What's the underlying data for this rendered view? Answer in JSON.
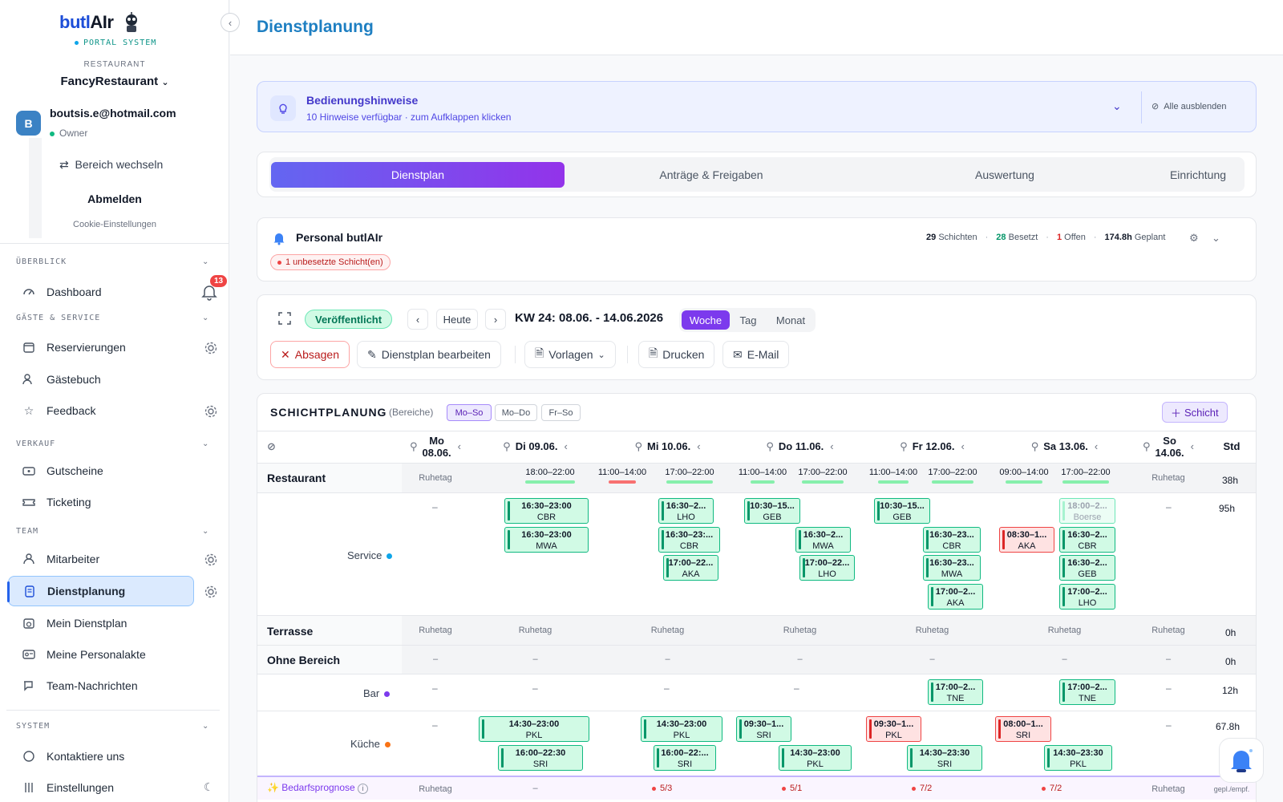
{
  "sidebar": {
    "brand_main": "butl",
    "brand_ai": "AIr",
    "portal_label": "PORTAL SYSTEM",
    "restaurant_label": "RESTAURANT",
    "restaurant_name": "FancyRestaurant",
    "avatar_letter": "B",
    "user_email": "boutsis.e@hotmail.com",
    "user_role": "Owner",
    "switch_area": "Bereich wechseln",
    "logout": "Abmelden",
    "cookie": "Cookie-Einstellungen",
    "notification_count": "13",
    "sections": {
      "overview": "ÜBERBLICK",
      "guests": "GÄSTE & SERVICE",
      "sales": "VERKAUF",
      "team": "TEAM",
      "system": "SYSTEM"
    },
    "items": {
      "dashboard": "Dashboard",
      "reservations": "Reservierungen",
      "guestbook": "Gästebuch",
      "feedback": "Feedback",
      "vouchers": "Gutscheine",
      "ticketing": "Ticketing",
      "staff": "Mitarbeiter",
      "scheduling": "Dienstplanung",
      "my_schedule": "Mein Dienstplan",
      "my_file": "Meine Personalakte",
      "team_messages": "Team-Nachrichten",
      "contact": "Kontaktiere uns",
      "settings": "Einstellungen"
    }
  },
  "header": {
    "title": "Dienstplanung"
  },
  "hints": {
    "title": "Bedienungshinweise",
    "subtitle": "10 Hinweise verfügbar · zum Aufklappen klicken",
    "hide_all": "Alle ausblenden"
  },
  "tabs": [
    "Dienstplan",
    "Anträge & Freigaben",
    "Auswertung",
    "Einrichtung"
  ],
  "staff_summary": {
    "title": "Personal butlAIr",
    "unfilled": "1 unbesetzte Schicht(en)",
    "shifts_n": "29",
    "shifts_l": "Schichten",
    "filled_n": "28",
    "filled_l": "Besetzt",
    "open_n": "1",
    "open_l": "Offen",
    "planned_n": "174.8h",
    "planned_l": "Geplant",
    "sep": "·"
  },
  "toolbar": {
    "status": "Veröffentlicht",
    "today": "Heute",
    "week_label": "KW 24: 08.06. - 14.06.2026",
    "views": [
      "Woche",
      "Tag",
      "Monat"
    ],
    "cancel": "Absagen",
    "edit": "Dienstplan bearbeiten",
    "templates": "Vorlagen",
    "print": "Drucken",
    "email": "E-Mail"
  },
  "planner": {
    "title": "SCHICHTPLANUNG",
    "subtitle": "(Bereiche)",
    "ranges": [
      "Mo–So",
      "Mo–Do",
      "Fr–So"
    ],
    "add_shift": "Schicht",
    "std_header": "Std",
    "days": [
      {
        "line1": "Mo",
        "line2": "08.06."
      },
      {
        "line1": "Di 09.06.",
        "line2": ""
      },
      {
        "line1": "Mi 10.06.",
        "line2": ""
      },
      {
        "line1": "Do 11.06.",
        "line2": ""
      },
      {
        "line1": "Fr 12.06.",
        "line2": ""
      },
      {
        "line1": "Sa 13.06.",
        "line2": ""
      },
      {
        "line1": "So",
        "line2": "14.06."
      }
    ],
    "restaurant": {
      "label": "Restaurant",
      "rest_day": "Ruhetag",
      "hours": "38h",
      "slots": [
        {
          "time": "18:00–22:00",
          "red": false
        },
        {
          "time": "11:00–14:00",
          "red": true
        },
        {
          "time": "17:00–22:00",
          "red": false
        },
        {
          "time": "11:00–14:00",
          "red": false
        },
        {
          "time": "17:00–22:00",
          "red": false
        },
        {
          "time": "11:00–14:00",
          "red": false
        },
        {
          "time": "17:00–22:00",
          "red": false
        },
        {
          "time": "09:00–14:00",
          "red": false
        },
        {
          "time": "17:00–22:00",
          "red": false
        }
      ]
    },
    "service": {
      "label": "Service",
      "hours": "95h",
      "dash": "–",
      "shifts": [
        {
          "t": "16:30–23:00",
          "n": "CBR",
          "s": ""
        },
        {
          "t": "16:30–23:00",
          "n": "MWA",
          "s": ""
        },
        {
          "t": "16:30–2...",
          "n": "LHO",
          "s": ""
        },
        {
          "t": "16:30–23:...",
          "n": "CBR",
          "s": ""
        },
        {
          "t": "17:00–22...",
          "n": "AKA",
          "s": ""
        },
        {
          "t": "10:30–15...",
          "n": "GEB",
          "s": ""
        },
        {
          "t": "16:30–2...",
          "n": "MWA",
          "s": ""
        },
        {
          "t": "17:00–22...",
          "n": "LHO",
          "s": ""
        },
        {
          "t": "10:30–15...",
          "n": "GEB",
          "s": ""
        },
        {
          "t": "16:30–23...",
          "n": "CBR",
          "s": ""
        },
        {
          "t": "16:30–23...",
          "n": "MWA",
          "s": ""
        },
        {
          "t": "17:00–2...",
          "n": "AKA",
          "s": ""
        },
        {
          "t": "08:30–1...",
          "n": "AKA",
          "s": "red"
        },
        {
          "t": "18:00–2...",
          "n": "Boerse",
          "s": "pending"
        },
        {
          "t": "16:30–2...",
          "n": "CBR",
          "s": ""
        },
        {
          "t": "16:30–2...",
          "n": "GEB",
          "s": ""
        },
        {
          "t": "17:00–2...",
          "n": "LHO",
          "s": ""
        }
      ]
    },
    "terrasse": {
      "label": "Terrasse",
      "rest_day": "Ruhetag",
      "hours": "0h"
    },
    "no_area": {
      "label": "Ohne Bereich",
      "dash": "–",
      "hours": "0h"
    },
    "bar": {
      "label": "Bar",
      "hours": "12h",
      "dash": "–",
      "shifts": [
        {
          "t": "17:00–2...",
          "n": "TNE",
          "s": ""
        },
        {
          "t": "17:00–2...",
          "n": "TNE",
          "s": ""
        }
      ]
    },
    "kitchen": {
      "label": "Küche",
      "hours": "67.8h",
      "dash": "–",
      "shifts": [
        {
          "t": "14:30–23:00",
          "n": "PKL",
          "s": ""
        },
        {
          "t": "16:00–22:30",
          "n": "SRI",
          "s": ""
        },
        {
          "t": "14:30–23:00",
          "n": "PKL",
          "s": ""
        },
        {
          "t": "16:00–22:...",
          "n": "SRI",
          "s": ""
        },
        {
          "t": "09:30–1...",
          "n": "SRI",
          "s": ""
        },
        {
          "t": "14:30–23:00",
          "n": "PKL",
          "s": ""
        },
        {
          "t": "09:30–1...",
          "n": "PKL",
          "s": "red"
        },
        {
          "t": "14:30–23:30",
          "n": "SRI",
          "s": ""
        },
        {
          "t": "08:00–1...",
          "n": "SRI",
          "s": "red"
        },
        {
          "t": "14:30–23:30",
          "n": "PKL",
          "s": ""
        }
      ]
    },
    "forecast": {
      "label": "Bedarfsprognose",
      "rest_day": "Ruhetag",
      "dash": "–",
      "values": [
        "5/3",
        "5/1",
        "7/2",
        "7/2"
      ],
      "footer": "gepl./empf."
    }
  },
  "colors": {
    "accent": "#7c3aed",
    "service_dot": "#0ea5e9",
    "bar_dot": "#7c3aed",
    "kitchen_dot": "#f97316"
  }
}
